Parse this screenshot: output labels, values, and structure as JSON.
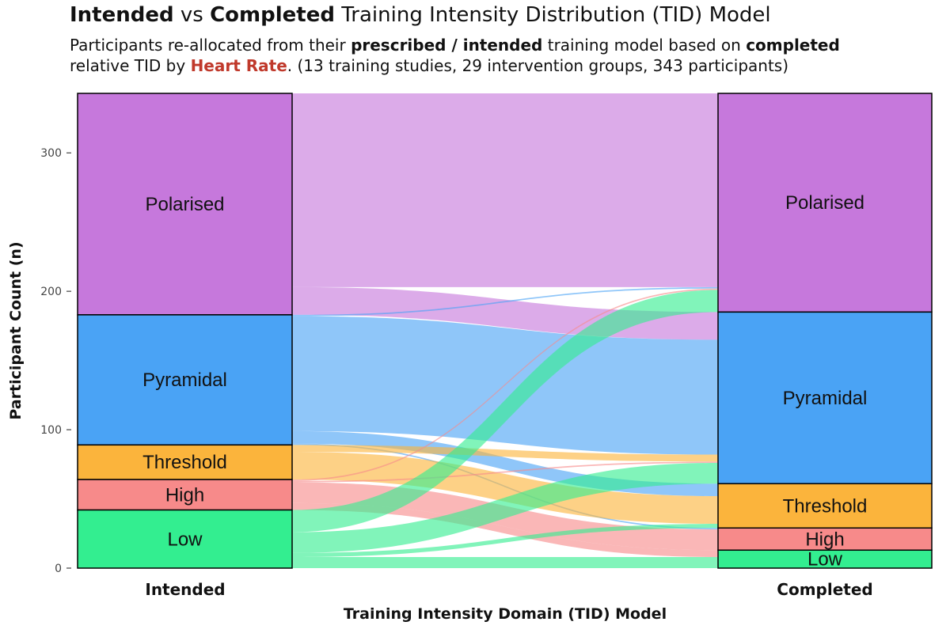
{
  "title": {
    "part1": "Intended",
    "part2": " vs ",
    "part3": "Completed",
    "part4": " Training Intensity Distribution (TID) Model"
  },
  "subtitle": {
    "l1a": "Participants re-allocated from their ",
    "l1b": "prescribed / intended",
    "l1c": " training model based on ",
    "l1d": "completed",
    "l2a": "relative TID by ",
    "l2b": "Heart Rate",
    "l2c": ". (13 training studies, 29 intervention groups, 343 participants)"
  },
  "colors": {
    "Polarised": "#c678dc",
    "Pyramidal": "#4aa3f5",
    "Threshold": "#fbb43c",
    "High": "#f78a8a",
    "Low": "#33ee90"
  },
  "chart_data": {
    "type": "alluvial",
    "xlabel": "Training Intensity Domain (TID) Model",
    "ylabel": "Participant Count (n)",
    "ylim": [
      0,
      343
    ],
    "yticks": [
      0,
      100,
      200,
      300
    ],
    "axes": [
      "Intended",
      "Completed"
    ],
    "categories_stack_order": [
      "Polarised",
      "Pyramidal",
      "Threshold",
      "High",
      "Low"
    ],
    "intended_totals": {
      "Polarised": 160,
      "Pyramidal": 94,
      "Threshold": 25,
      "High": 22,
      "Low": 42
    },
    "completed_totals": {
      "Polarised": 158,
      "Pyramidal": 124,
      "Threshold": 32,
      "High": 16,
      "Low": 13
    },
    "flows": [
      {
        "from": "Polarised",
        "to": "Polarised",
        "value": 140
      },
      {
        "from": "Polarised",
        "to": "Pyramidal",
        "value": 20
      },
      {
        "from": "Pyramidal",
        "to": "Polarised",
        "value": 1
      },
      {
        "from": "Pyramidal",
        "to": "Pyramidal",
        "value": 83
      },
      {
        "from": "Pyramidal",
        "to": "Threshold",
        "value": 9
      },
      {
        "from": "Pyramidal",
        "to": "High",
        "value": 1
      },
      {
        "from": "Threshold",
        "to": "Pyramidal",
        "value": 5
      },
      {
        "from": "Threshold",
        "to": "Threshold",
        "value": 20
      },
      {
        "from": "High",
        "to": "Polarised",
        "value": 1
      },
      {
        "from": "High",
        "to": "Pyramidal",
        "value": 1
      },
      {
        "from": "High",
        "to": "High",
        "value": 15
      },
      {
        "from": "High",
        "to": "Low",
        "value": 5
      },
      {
        "from": "Low",
        "to": "Polarised",
        "value": 16
      },
      {
        "from": "Low",
        "to": "Pyramidal",
        "value": 15
      },
      {
        "from": "Low",
        "to": "Threshold",
        "value": 3
      },
      {
        "from": "Low",
        "to": "Low",
        "value": 8
      }
    ]
  }
}
